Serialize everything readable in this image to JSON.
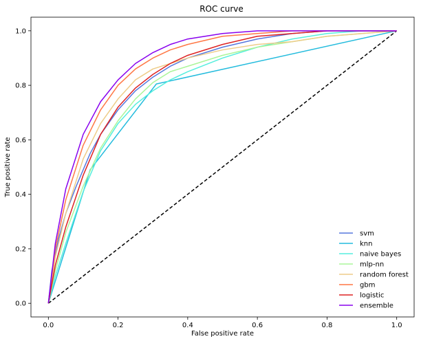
{
  "chart_data": {
    "type": "line",
    "title": "ROC curve",
    "xlabel": "False positive rate",
    "ylabel": "True positive rate",
    "xlim": [
      -0.05,
      1.05
    ],
    "ylim": [
      -0.05,
      1.05
    ],
    "xticks": [
      "0.0",
      "0.2",
      "0.4",
      "0.6",
      "0.8",
      "1.0"
    ],
    "xtick_values": [
      0,
      0.2,
      0.4,
      0.6,
      0.8,
      1.0
    ],
    "yticks": [
      "0.0",
      "0.2",
      "0.4",
      "0.6",
      "0.8",
      "1.0"
    ],
    "ytick_values": [
      0,
      0.2,
      0.4,
      0.6,
      0.8,
      1.0
    ],
    "grid": false,
    "legend_position": "bottom-right",
    "reference_line": {
      "x": [
        0,
        1
      ],
      "y": [
        0,
        1
      ],
      "color": "#000000",
      "style": "dashed"
    },
    "series": [
      {
        "name": "svm",
        "color": "#5577dd",
        "x": [
          0,
          0.01,
          0.03,
          0.05,
          0.08,
          0.1,
          0.12,
          0.15,
          0.2,
          0.25,
          0.3,
          0.35,
          0.4,
          0.5,
          0.6,
          0.7,
          0.8,
          0.9,
          1.0
        ],
        "y": [
          0,
          0.12,
          0.24,
          0.33,
          0.43,
          0.49,
          0.55,
          0.62,
          0.71,
          0.78,
          0.83,
          0.87,
          0.9,
          0.94,
          0.97,
          0.99,
          1.0,
          1.0,
          1.0
        ]
      },
      {
        "name": "knn",
        "color": "#22bbdd",
        "x": [
          0,
          0.12,
          0.31,
          1.0
        ],
        "y": [
          0,
          0.49,
          0.805,
          1.0
        ]
      },
      {
        "name": "naive bayes",
        "color": "#55eedd",
        "x": [
          0,
          0.02,
          0.05,
          0.1,
          0.15,
          0.2,
          0.25,
          0.3,
          0.35,
          0.4,
          0.5,
          0.6,
          0.7,
          0.8,
          0.9,
          1.0
        ],
        "y": [
          0,
          0.1,
          0.22,
          0.41,
          0.56,
          0.66,
          0.73,
          0.78,
          0.82,
          0.85,
          0.9,
          0.94,
          0.97,
          0.99,
          1.0,
          1.0
        ]
      },
      {
        "name": "mlp-nn",
        "color": "#aaf599",
        "x": [
          0,
          0.02,
          0.05,
          0.1,
          0.15,
          0.2,
          0.25,
          0.3,
          0.35,
          0.4,
          0.5,
          0.6,
          0.7,
          0.8,
          0.9,
          1.0
        ],
        "y": [
          0,
          0.12,
          0.26,
          0.43,
          0.57,
          0.67,
          0.75,
          0.81,
          0.85,
          0.87,
          0.91,
          0.94,
          0.96,
          0.98,
          0.99,
          1.0
        ]
      },
      {
        "name": "random forest",
        "color": "#eecc88",
        "x": [
          0,
          0.02,
          0.05,
          0.1,
          0.15,
          0.2,
          0.25,
          0.3,
          0.35,
          0.4,
          0.5,
          0.6,
          0.7,
          0.8,
          0.9,
          1.0
        ],
        "y": [
          0,
          0.17,
          0.33,
          0.53,
          0.66,
          0.75,
          0.82,
          0.86,
          0.88,
          0.9,
          0.93,
          0.95,
          0.96,
          0.98,
          0.99,
          1.0
        ]
      },
      {
        "name": "gbm",
        "color": "#ff7744",
        "x": [
          0,
          0.02,
          0.05,
          0.1,
          0.15,
          0.2,
          0.25,
          0.3,
          0.35,
          0.4,
          0.5,
          0.6,
          0.7,
          0.8,
          0.9,
          1.0
        ],
        "y": [
          0,
          0.2,
          0.38,
          0.58,
          0.71,
          0.8,
          0.86,
          0.9,
          0.93,
          0.95,
          0.98,
          0.99,
          1.0,
          1.0,
          1.0,
          1.0
        ]
      },
      {
        "name": "logistic",
        "color": "#dd2222",
        "x": [
          0,
          0.02,
          0.05,
          0.1,
          0.15,
          0.2,
          0.25,
          0.3,
          0.35,
          0.4,
          0.5,
          0.6,
          0.7,
          0.8,
          0.9,
          1.0
        ],
        "y": [
          0,
          0.14,
          0.28,
          0.47,
          0.62,
          0.72,
          0.79,
          0.84,
          0.88,
          0.91,
          0.95,
          0.98,
          0.99,
          1.0,
          1.0,
          1.0
        ]
      },
      {
        "name": "ensemble",
        "color": "#8800ee",
        "x": [
          0,
          0.02,
          0.05,
          0.1,
          0.15,
          0.2,
          0.25,
          0.3,
          0.35,
          0.4,
          0.5,
          0.6,
          0.7,
          0.8,
          0.9,
          1.0
        ],
        "y": [
          0,
          0.22,
          0.42,
          0.62,
          0.74,
          0.82,
          0.88,
          0.92,
          0.95,
          0.97,
          0.99,
          1.0,
          1.0,
          1.0,
          1.0,
          1.0
        ]
      }
    ]
  }
}
